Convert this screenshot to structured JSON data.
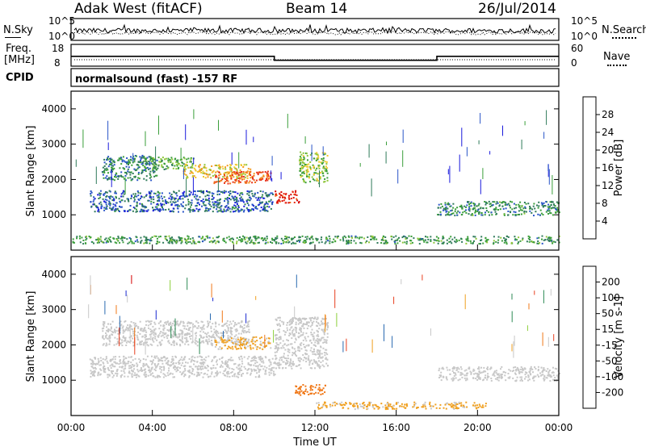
{
  "header": {
    "radar": "Adak West (fitACF)",
    "beam": "Beam 14",
    "date": "26/Jul/2014"
  },
  "panels": {
    "nsky_label": "N.Sky",
    "nsearch_label": "N.Search",
    "freq_label_line1": "Freq.",
    "freq_label_line2": "[MHz]",
    "nave_label": "Nave",
    "cpid_label": "CPID",
    "nsky_ticks": [
      "10^5",
      "10^0"
    ],
    "nsearch_ticks": [
      "10^5",
      "10^0"
    ],
    "freq_ticks": [
      "18",
      "8"
    ],
    "nave_ticks": [
      "60",
      "0"
    ],
    "cpid_text": "normalsound (fast) -157 RF"
  },
  "colors": {
    "power_scale": [
      "#1a1adc",
      "#2a55c8",
      "#2f7a5a",
      "#3a9e3a",
      "#8ec63a",
      "#f0c830",
      "#f39a20",
      "#ef6a18",
      "#e83018",
      "#d60000"
    ],
    "velocity_scale": [
      "#1a2ad0",
      "#2a6ab0",
      "#2e8a55",
      "#8ccf3a",
      "#c8c8c8",
      "#c8c8c8",
      "#f0a020",
      "#f07818",
      "#e84020",
      "#d60000"
    ],
    "ground_scatter": "#c8c8c8"
  },
  "chart_data": [
    {
      "type": "line",
      "name": "N.Sky / N.Search",
      "x_ticks": [
        "00:00",
        "04:00",
        "08:00",
        "12:00",
        "16:00",
        "20:00",
        "00:00"
      ],
      "y_scale": "log",
      "y_ticks": [
        "10^0",
        "10^5"
      ]
    },
    {
      "type": "line",
      "name": "Freq / Nave",
      "x": [
        0,
        10,
        10,
        18,
        18,
        24
      ],
      "freq_mhz": [
        12.5,
        12.5,
        10.7,
        10.7,
        12.5,
        12.5
      ],
      "y_ticks_left": [
        "8",
        "18"
      ],
      "y_ticks_right": [
        "0",
        "60"
      ]
    },
    {
      "type": "heatmap",
      "panel": "power",
      "ylabel": "Slant Range [km]",
      "xlabel": "Time UT",
      "x_ticks": [
        "00:00",
        "04:00",
        "08:00",
        "12:00",
        "16:00",
        "20:00",
        "00:00"
      ],
      "y_ticks": [
        "1000",
        "2000",
        "3000",
        "4000"
      ],
      "ylim": [
        0,
        4500
      ],
      "colorbar_label": "Power [dB]",
      "colorbar_ticks": [
        "4",
        "8",
        "12",
        "16",
        "20",
        "24",
        "28"
      ],
      "regions": [
        {
          "t": [
            0.9,
            9.9
          ],
          "range": [
            1100,
            1700
          ],
          "value": 6
        },
        {
          "t": [
            1.5,
            4.2
          ],
          "range": [
            2000,
            2700
          ],
          "value": 8
        },
        {
          "t": [
            3.5,
            6.0
          ],
          "range": [
            2300,
            2650
          ],
          "value": 12
        },
        {
          "t": [
            5.5,
            8.8
          ],
          "range": [
            2050,
            2450
          ],
          "value": 18
        },
        {
          "t": [
            7.0,
            9.8
          ],
          "range": [
            1900,
            2250
          ],
          "value": 25
        },
        {
          "t": [
            10.0,
            11.2
          ],
          "range": [
            1350,
            1700
          ],
          "value": 28
        },
        {
          "t": [
            11.2,
            12.6
          ],
          "range": [
            1900,
            2800
          ],
          "value": 14
        },
        {
          "t": [
            18.0,
            24.0
          ],
          "range": [
            1000,
            1400
          ],
          "value": 9
        },
        {
          "t": [
            0,
            24
          ],
          "range": [
            200,
            420
          ],
          "value": 10
        }
      ]
    },
    {
      "type": "heatmap",
      "panel": "velocity",
      "ylabel": "Slant Range [km]",
      "xlabel": "Time UT",
      "x_ticks": [
        "00:00",
        "04:00",
        "08:00",
        "12:00",
        "16:00",
        "20:00",
        "00:00"
      ],
      "y_ticks": [
        "1000",
        "2000",
        "3000",
        "4000"
      ],
      "ylim": [
        0,
        4500
      ],
      "colorbar_label": "Velocity [m s^-1]",
      "colorbar_ticks": [
        "200",
        "100",
        "50",
        "15",
        "-15",
        "-50",
        "-100",
        "-200"
      ],
      "regions": [
        {
          "t": [
            0.9,
            10.0
          ],
          "range": [
            1100,
            1700
          ],
          "value": 0
        },
        {
          "t": [
            1.5,
            8.8
          ],
          "range": [
            2000,
            2700
          ],
          "value": 0
        },
        {
          "t": [
            7.0,
            9.8
          ],
          "range": [
            1900,
            2250
          ],
          "value": -60
        },
        {
          "t": [
            10.0,
            12.6
          ],
          "range": [
            1350,
            2800
          ],
          "value": 0
        },
        {
          "t": [
            11.0,
            12.5
          ],
          "range": [
            600,
            900
          ],
          "value": -120
        },
        {
          "t": [
            12.0,
            20.5
          ],
          "range": [
            200,
            400
          ],
          "value": -60
        },
        {
          "t": [
            18.0,
            24.0
          ],
          "range": [
            1000,
            1400
          ],
          "value": 0
        }
      ]
    }
  ],
  "axis_labels": {
    "xlabel": "Time UT",
    "ylabel_top": "Slant Range [km]",
    "ylabel_bottom": "Slant Range [km]",
    "power_cbar": "Power [dB]",
    "velocity_cbar": "Velocity [m s-1]"
  }
}
